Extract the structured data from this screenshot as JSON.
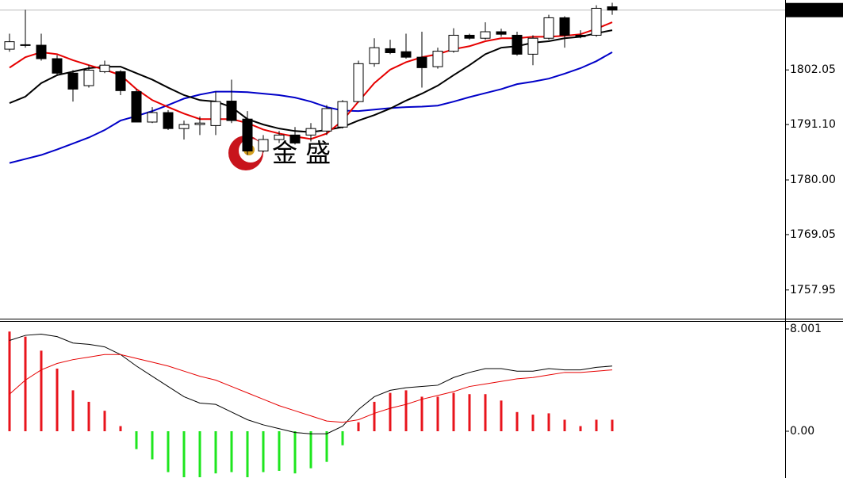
{
  "chart_data": [
    {
      "type": "candlestick",
      "open": [
        1806.2,
        1807.1,
        1807.0,
        1804.3,
        1801.4,
        1798.9,
        1801.7,
        1801.7,
        1797.7,
        1791.6,
        1793.5,
        1790.3,
        1791.1,
        1790.9,
        1795.8,
        1792.2,
        1785.8,
        1788.1,
        1789.0,
        1789.0,
        1789.8,
        1790.6,
        1795.7,
        1803.3,
        1806.3,
        1805.7,
        1804.6,
        1802.7,
        1805.8,
        1809.0,
        1808.4,
        1809.7,
        1809.0,
        1805.2,
        1808.4,
        1812.5,
        1809.0,
        1809.0,
        1814.7
      ],
      "high": [
        1809.3,
        1814.1,
        1809.3,
        1805.0,
        1802.0,
        1803.0,
        1803.9,
        1802.0,
        1798.2,
        1794.6,
        1794.0,
        1791.9,
        1792.7,
        1797.7,
        1800.1,
        1793.8,
        1789.0,
        1789.8,
        1790.6,
        1791.4,
        1795.0,
        1796.0,
        1803.9,
        1808.4,
        1808.1,
        1809.3,
        1809.7,
        1806.5,
        1810.4,
        1809.3,
        1811.6,
        1810.3,
        1809.7,
        1809.0,
        1813.1,
        1812.8,
        1810.0,
        1815.0,
        1815.5
      ],
      "low": [
        1805.7,
        1806.5,
        1803.9,
        1800.8,
        1795.7,
        1798.5,
        1801.4,
        1797.0,
        1791.6,
        1791.4,
        1790.0,
        1788.1,
        1789.0,
        1789.0,
        1791.4,
        1785.0,
        1785.5,
        1787.4,
        1787.1,
        1787.7,
        1789.0,
        1790.3,
        1795.5,
        1802.7,
        1805.2,
        1804.3,
        1798.5,
        1802.3,
        1805.5,
        1808.1,
        1808.1,
        1808.7,
        1804.9,
        1803.0,
        1808.1,
        1806.5,
        1808.4,
        1808.7,
        1813.1
      ],
      "close": [
        1807.7,
        1807.0,
        1804.3,
        1801.4,
        1798.2,
        1802.0,
        1803.0,
        1797.9,
        1791.6,
        1793.5,
        1790.3,
        1791.1,
        1791.4,
        1795.7,
        1791.9,
        1785.8,
        1788.1,
        1789.0,
        1787.4,
        1790.3,
        1794.3,
        1795.7,
        1803.3,
        1806.5,
        1805.5,
        1804.6,
        1802.5,
        1805.8,
        1809.0,
        1808.4,
        1809.7,
        1809.2,
        1805.2,
        1808.4,
        1812.5,
        1809.0,
        1808.7,
        1814.4,
        1814.04
      ],
      "series": [
        {
          "color": "#0000c8",
          "values": [
            1783.4,
            1784.2,
            1785.0,
            1786.1,
            1787.3,
            1788.5,
            1790.0,
            1791.9,
            1792.8,
            1793.8,
            1795.0,
            1796.3,
            1797.1,
            1797.7,
            1797.7,
            1797.6,
            1797.3,
            1797.0,
            1796.5,
            1795.7,
            1794.6,
            1793.9,
            1793.8,
            1794.1,
            1794.4,
            1794.6,
            1794.7,
            1794.9,
            1795.7,
            1796.6,
            1797.4,
            1798.2,
            1799.2,
            1799.7,
            1800.3,
            1801.3,
            1802.4,
            1803.8,
            1805.6
          ]
        },
        {
          "color": "#000000",
          "values": [
            1795.4,
            1796.7,
            1799.4,
            1801.0,
            1801.7,
            1802.4,
            1802.7,
            1802.7,
            1801.4,
            1800.1,
            1798.5,
            1797.0,
            1796.0,
            1795.7,
            1794.6,
            1792.2,
            1791.1,
            1790.3,
            1789.8,
            1789.6,
            1790.0,
            1790.6,
            1791.9,
            1793.0,
            1794.3,
            1795.9,
            1797.3,
            1798.9,
            1801.0,
            1803.0,
            1805.2,
            1806.5,
            1806.8,
            1807.5,
            1807.8,
            1808.4,
            1808.7,
            1809.4,
            1810.0
          ]
        },
        {
          "color": "#e60000",
          "values": [
            1802.5,
            1804.6,
            1805.6,
            1805.2,
            1804.0,
            1803.0,
            1802.1,
            1801.0,
            1798.2,
            1796.0,
            1794.6,
            1793.3,
            1792.2,
            1792.2,
            1792.2,
            1791.4,
            1790.1,
            1789.3,
            1788.7,
            1788.2,
            1789.3,
            1791.9,
            1795.7,
            1799.4,
            1802.1,
            1803.6,
            1804.6,
            1805.2,
            1806.2,
            1806.8,
            1807.8,
            1808.4,
            1808.4,
            1808.7,
            1808.7,
            1808.9,
            1809.2,
            1810.3,
            1811.6
          ]
        }
      ],
      "ylim": [
        1752.2,
        1816.06
      ],
      "yticks": [
        {
          "value": 1802.05,
          "label": "1802.05"
        },
        {
          "value": 1791.1,
          "label": "1791.10"
        },
        {
          "value": 1780,
          "label": "1780.00"
        },
        1769.05,
        1757.95
      ],
      "watermark": "金 盛",
      "grid": false
    },
    {
      "type": "macd",
      "values": [
        7.8,
        7.4,
        6.3,
        4.9,
        3.2,
        2.3,
        1.6,
        0.4,
        -1.4,
        -2.2,
        -3.2,
        -3.6,
        -3.6,
        -3.3,
        -3.2,
        -3.6,
        -3.2,
        -3.1,
        -3.3,
        -2.9,
        -2.4,
        -1.1,
        0.7,
        2.3,
        3.0,
        3.2,
        2.7,
        2.7,
        3.0,
        2.9,
        2.9,
        2.4,
        1.5,
        1.3,
        1.4,
        0.9,
        0.4,
        0.9,
        0.9
      ],
      "up_color": "#e8141c",
      "down_color": "#1ee61e",
      "series": [
        {
          "color": "#000000",
          "values": [
            7.1,
            7.5,
            7.6,
            7.4,
            6.9,
            6.8,
            6.6,
            6.0,
            5.1,
            4.3,
            3.5,
            2.7,
            2.2,
            2.1,
            1.5,
            0.9,
            0.5,
            0.2,
            -0.1,
            -0.2,
            -0.2,
            0.4,
            1.7,
            2.7,
            3.2,
            3.4,
            3.5,
            3.6,
            4.2,
            4.6,
            4.9,
            4.9,
            4.7,
            4.7,
            4.9,
            4.8,
            4.8,
            5.0,
            5.1
          ]
        },
        {
          "color": "#e60000",
          "values": [
            2.9,
            4.0,
            4.8,
            5.3,
            5.6,
            5.8,
            6.0,
            6.0,
            5.7,
            5.4,
            5.1,
            4.7,
            4.3,
            4.0,
            3.5,
            3.0,
            2.5,
            2.0,
            1.6,
            1.2,
            0.8,
            0.7,
            0.9,
            1.4,
            1.8,
            2.1,
            2.5,
            2.8,
            3.1,
            3.5,
            3.7,
            3.9,
            4.1,
            4.2,
            4.4,
            4.6,
            4.6,
            4.7,
            4.8
          ]
        }
      ],
      "ylim": [
        -3.66,
        8.62
      ],
      "yticks": [
        8.001,
        {
          "value": 0,
          "label": "0.00"
        }
      ],
      "grid": false
    }
  ]
}
